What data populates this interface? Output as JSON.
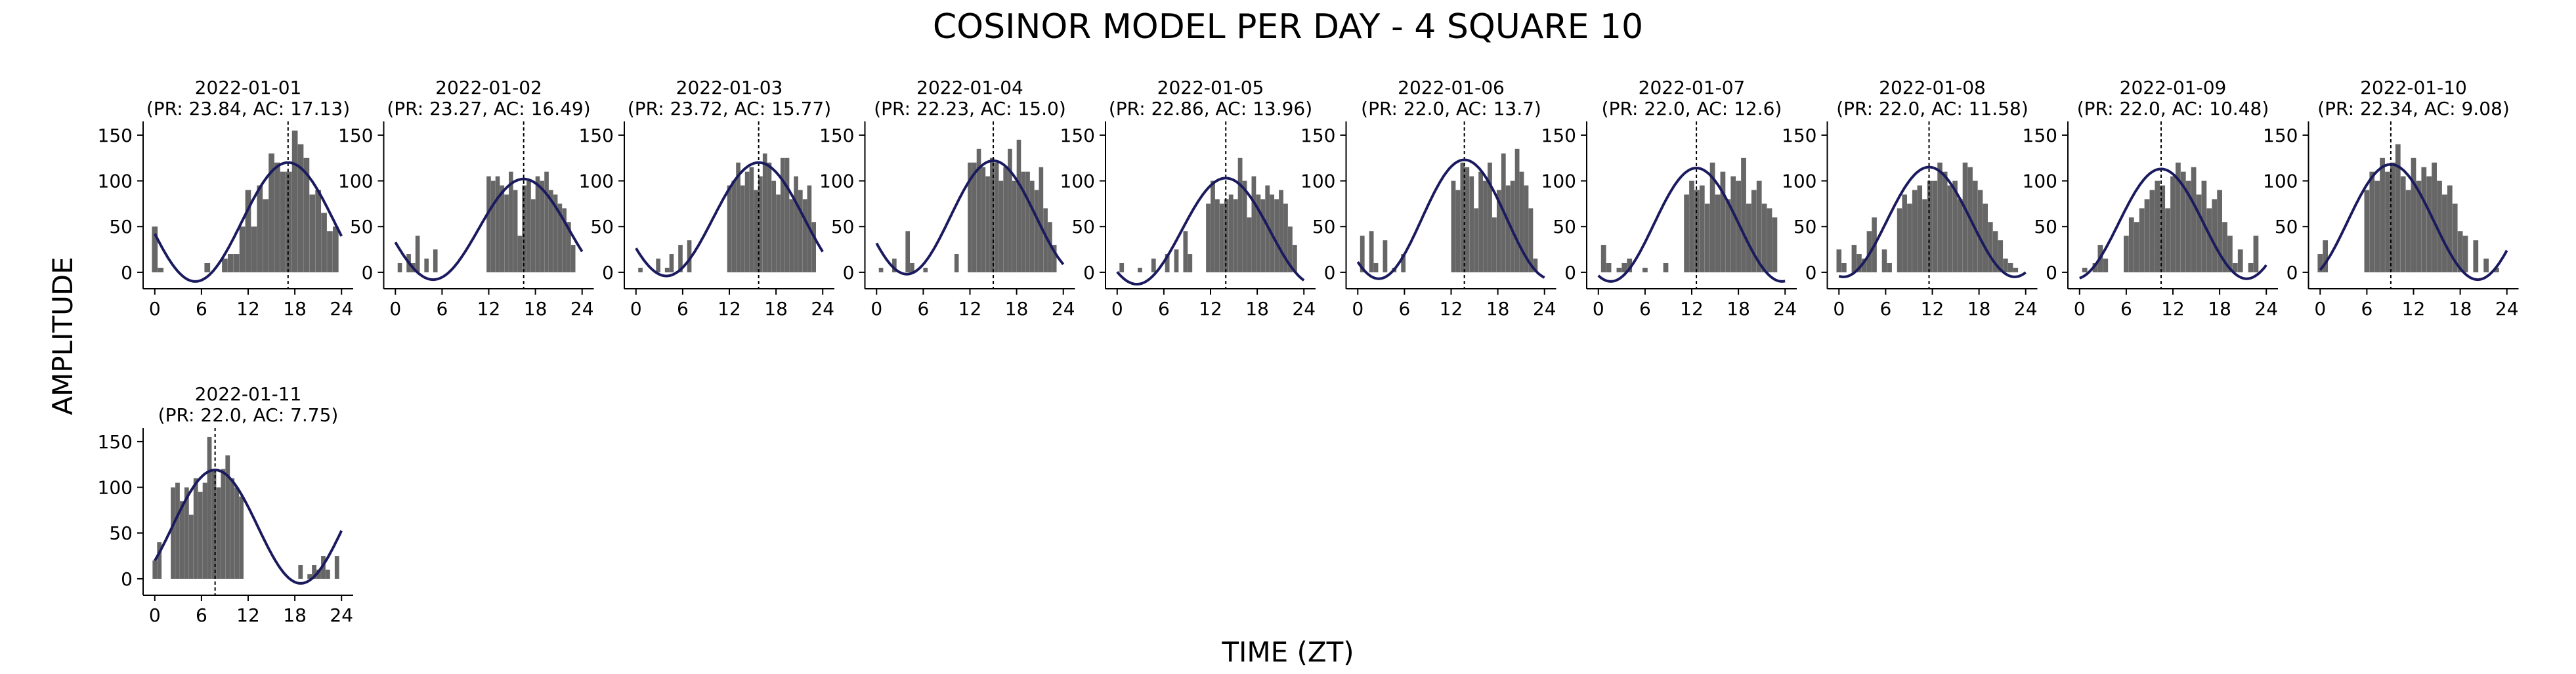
{
  "title": "COSINOR MODEL PER DAY - 4 SQUARE 10",
  "xlabel": "TIME (ZT)",
  "ylabel": "AMPLITUDE",
  "colors": {
    "bar": "#666666",
    "curve": "#1a1a5e",
    "acrophase_line": "#000000"
  },
  "chart_data": {
    "type": "bar",
    "xlim": [
      -1.5,
      25.5
    ],
    "ylim": [
      -18,
      165
    ],
    "xticks": [
      0,
      6,
      12,
      18,
      24
    ],
    "yticks": [
      0,
      50,
      100,
      150
    ],
    "panels": [
      {
        "title": "2022-01-01",
        "subtitle": "(PR: 23.84, AC: 17.13)",
        "period": 23.84,
        "acrophase": 17.13,
        "mesor": 55,
        "amplitude": 65,
        "x0": 0,
        "bars": [
          50,
          5,
          0,
          0,
          0,
          0,
          0,
          0,
          0,
          10,
          0,
          0,
          15,
          20,
          20,
          50,
          90,
          50,
          95,
          80,
          130,
          120,
          110,
          110,
          155,
          140,
          125,
          85,
          90,
          65,
          45,
          50
        ]
      },
      {
        "title": "2022-01-02",
        "subtitle": "(PR: 23.27, AC: 16.49)",
        "period": 23.27,
        "acrophase": 16.49,
        "mesor": 47,
        "amplitude": 55,
        "x0": 0,
        "bars": [
          0,
          10,
          0,
          20,
          10,
          40,
          0,
          15,
          0,
          25,
          0,
          0,
          0,
          0,
          0,
          0,
          0,
          0,
          0,
          0,
          0,
          105,
          100,
          105,
          95,
          85,
          110,
          90,
          40,
          95,
          100,
          80,
          105,
          100,
          110,
          90,
          85,
          75,
          70,
          55,
          30,
          0
        ]
      },
      {
        "title": "2022-01-03",
        "subtitle": "(PR: 23.72, AC: 15.77)",
        "period": 23.72,
        "acrophase": 15.77,
        "mesor": 58,
        "amplitude": 62,
        "x0": 0,
        "bars": [
          0,
          5,
          0,
          0,
          0,
          15,
          0,
          5,
          20,
          0,
          30,
          0,
          35,
          0,
          0,
          0,
          0,
          0,
          0,
          0,
          0,
          95,
          100,
          120,
          95,
          110,
          115,
          90,
          105,
          130,
          120,
          100,
          85,
          125,
          125,
          80,
          105,
          90,
          80,
          95,
          55,
          0
        ]
      },
      {
        "title": "2022-01-04",
        "subtitle": "(PR: 22.23, AC: 15.0)",
        "period": 22.23,
        "acrophase": 15.0,
        "mesor": 60,
        "amplitude": 62,
        "x0": 0,
        "bars": [
          0,
          5,
          0,
          0,
          15,
          0,
          0,
          45,
          10,
          0,
          0,
          5,
          0,
          0,
          0,
          0,
          0,
          0,
          20,
          0,
          0,
          120,
          120,
          135,
          115,
          105,
          125,
          120,
          100,
          115,
          135,
          100,
          145,
          110,
          110,
          100,
          90,
          115,
          70,
          55,
          30,
          0
        ]
      },
      {
        "title": "2022-01-05",
        "subtitle": "(PR: 22.86, AC: 13.96)",
        "period": 22.86,
        "acrophase": 13.96,
        "mesor": 45,
        "amplitude": 58,
        "x0": 0,
        "bars": [
          0,
          10,
          0,
          0,
          0,
          5,
          0,
          0,
          15,
          0,
          0,
          20,
          0,
          25,
          0,
          45,
          20,
          0,
          0,
          0,
          75,
          100,
          80,
          75,
          80,
          85,
          80,
          125,
          100,
          60,
          105,
          85,
          80,
          95,
          85,
          80,
          90,
          75,
          50,
          30,
          0
        ]
      },
      {
        "title": "2022-01-06",
        "subtitle": "(PR: 22.0, AC: 13.7)",
        "period": 22.0,
        "acrophase": 13.7,
        "mesor": 58,
        "amplitude": 65,
        "x0": 0,
        "bars": [
          0,
          40,
          0,
          45,
          10,
          0,
          35,
          0,
          5,
          0,
          20,
          0,
          0,
          0,
          0,
          0,
          0,
          0,
          0,
          0,
          0,
          100,
          90,
          120,
          115,
          105,
          70,
          110,
          100,
          120,
          60,
          90,
          130,
          95,
          100,
          135,
          110,
          95,
          70,
          15,
          0
        ]
      },
      {
        "title": "2022-01-07",
        "subtitle": "(PR: 22.0, AC: 12.6)",
        "period": 22.0,
        "acrophase": 12.6,
        "mesor": 52,
        "amplitude": 62,
        "x0": 0,
        "bars": [
          0,
          30,
          10,
          0,
          5,
          10,
          15,
          0,
          0,
          5,
          0,
          0,
          0,
          10,
          0,
          0,
          0,
          85,
          100,
          90,
          95,
          75,
          120,
          85,
          110,
          80,
          105,
          100,
          125,
          75,
          90,
          100,
          75,
          70,
          60,
          0
        ]
      },
      {
        "title": "2022-01-08",
        "subtitle": "(PR: 22.0, AC: 11.58)",
        "period": 22.0,
        "acrophase": 11.58,
        "mesor": 55,
        "amplitude": 60,
        "x0": 0,
        "bars": [
          25,
          10,
          0,
          30,
          20,
          15,
          45,
          60,
          0,
          25,
          10,
          0,
          70,
          85,
          75,
          90,
          95,
          80,
          100,
          100,
          120,
          110,
          95,
          100,
          80,
          120,
          115,
          100,
          90,
          75,
          55,
          45,
          35,
          15,
          10,
          5,
          0
        ]
      },
      {
        "title": "2022-01-09",
        "subtitle": "(PR: 22.0, AC: 10.48)",
        "period": 22.0,
        "acrophase": 10.48,
        "mesor": 53,
        "amplitude": 60,
        "x0": 0,
        "bars": [
          0,
          5,
          0,
          10,
          30,
          15,
          0,
          0,
          0,
          40,
          60,
          55,
          70,
          80,
          90,
          100,
          95,
          70,
          105,
          120,
          110,
          100,
          115,
          85,
          100,
          70,
          80,
          90,
          55,
          40,
          10,
          25,
          0,
          10,
          40,
          0
        ]
      },
      {
        "title": "2022-01-10",
        "subtitle": "(PR: 22.34, AC: 9.08)",
        "period": 22.34,
        "acrophase": 9.08,
        "mesor": 55,
        "amplitude": 63,
        "x0": 0,
        "bars": [
          20,
          35,
          0,
          0,
          0,
          0,
          0,
          0,
          0,
          90,
          110,
          100,
          125,
          110,
          120,
          140,
          105,
          90,
          125,
          100,
          115,
          105,
          120,
          100,
          85,
          95,
          75,
          45,
          40,
          0,
          35,
          0,
          15,
          0,
          5,
          0
        ]
      },
      {
        "title": "2022-01-11",
        "subtitle": "(PR: 22.0, AC: 7.75)",
        "period": 22.0,
        "acrophase": 7.75,
        "mesor": 57,
        "amplitude": 62,
        "x0": 0,
        "bars": [
          20,
          40,
          0,
          0,
          100,
          105,
          85,
          100,
          70,
          110,
          95,
          105,
          155,
          120,
          100,
          120,
          135,
          110,
          100,
          90,
          0,
          0,
          0,
          0,
          0,
          0,
          0,
          0,
          0,
          0,
          0,
          0,
          15,
          0,
          5,
          15,
          10,
          25,
          10,
          0,
          25
        ]
      }
    ]
  }
}
